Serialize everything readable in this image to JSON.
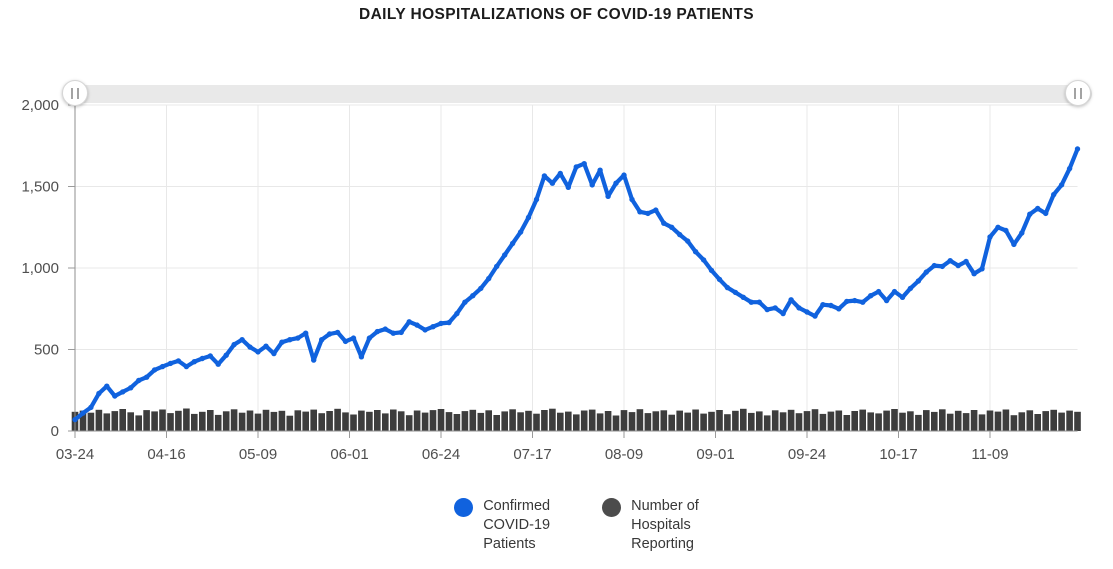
{
  "title": "DAILY HOSPITALIZATIONS OF COVID-19 PATIENTS",
  "range_slider": {
    "left_handle": "range-start",
    "right_handle": "range-end",
    "full_range_selected": true
  },
  "chart_data": {
    "type": "line+bar",
    "title": "DAILY HOSPITALIZATIONS OF COVID-19 PATIENTS",
    "xlabel": "",
    "ylabel": "",
    "ylim": [
      0,
      2000
    ],
    "grid": true,
    "legend_position": "bottom",
    "x_start_label": "03-24",
    "x_day_step": 2,
    "x_max_day": 252,
    "x_tick_days": [
      0,
      23,
      46,
      69,
      92,
      115,
      138,
      161,
      184,
      207,
      230
    ],
    "x_tick_labels": [
      "03-24",
      "04-16",
      "05-09",
      "06-01",
      "06-24",
      "07-17",
      "08-09",
      "09-01",
      "09-24",
      "10-17",
      "11-09"
    ],
    "y_ticks": [
      0,
      500,
      1000,
      1500,
      2000
    ],
    "y_tick_labels": [
      "0",
      "500",
      "1,000",
      "1,500",
      "2,000"
    ],
    "series": [
      {
        "name": "Confirmed COVID-19 Patients",
        "type": "line",
        "color": "#1062de",
        "values": [
          70,
          110,
          145,
          230,
          275,
          215,
          240,
          265,
          310,
          330,
          375,
          395,
          415,
          430,
          395,
          425,
          445,
          460,
          410,
          465,
          530,
          560,
          515,
          485,
          520,
          475,
          545,
          560,
          570,
          600,
          435,
          560,
          595,
          605,
          550,
          570,
          455,
          570,
          610,
          625,
          600,
          605,
          670,
          650,
          620,
          640,
          660,
          665,
          720,
          790,
          830,
          875,
          935,
          1010,
          1080,
          1150,
          1220,
          1310,
          1420,
          1565,
          1520,
          1580,
          1495,
          1620,
          1640,
          1510,
          1600,
          1440,
          1520,
          1570,
          1420,
          1345,
          1335,
          1355,
          1275,
          1250,
          1205,
          1165,
          1100,
          1050,
          985,
          930,
          880,
          850,
          820,
          790,
          790,
          745,
          755,
          720,
          805,
          755,
          730,
          705,
          775,
          770,
          750,
          795,
          800,
          790,
          830,
          855,
          800,
          855,
          820,
          875,
          920,
          975,
          1015,
          1010,
          1045,
          1015,
          1040,
          965,
          995,
          1190,
          1250,
          1230,
          1145,
          1215,
          1330,
          1365,
          1335,
          1450,
          1510,
          1610,
          1730
        ]
      },
      {
        "name": "Number of Hospitals Reporting",
        "type": "bar",
        "color": "#3d3d3d",
        "values": [
          118,
          125,
          112,
          130,
          108,
          122,
          135,
          115,
          96,
          128,
          120,
          132,
          110,
          124,
          138,
          105,
          118,
          129,
          99,
          121,
          133,
          112,
          126,
          107,
          130,
          117,
          124,
          94,
          127,
          119,
          131,
          109,
          123,
          136,
          114,
          101,
          125,
          118,
          129,
          108,
          132,
          121,
          97,
          126,
          113,
          128,
          135,
          116,
          104,
          122,
          130,
          111,
          127,
          98,
          120,
          133,
          115,
          124,
          106,
          129,
          137,
          112,
          119,
          102,
          126,
          131,
          108,
          123,
          95,
          128,
          116,
          134,
          110,
          121,
          127,
          100,
          125,
          113,
          132,
          107,
          118,
          129,
          103,
          124,
          136,
          111,
          120,
          96,
          127,
          115,
          130,
          109,
          122,
          134,
          105,
          119,
          126,
          98,
          123,
          131,
          114,
          108,
          125,
          135,
          112,
          121,
          99,
          128,
          117,
          133,
          106,
          124,
          110,
          129,
          102,
          126,
          119,
          132,
          97,
          115,
          127,
          104,
          122,
          130,
          113,
          125,
          118
        ]
      }
    ],
    "legend": [
      {
        "label": "Confirmed\nCOVID-19\nPatients",
        "color": "#1062de"
      },
      {
        "label": "Number of\nHospitals\nReporting",
        "color": "#4c4c4c"
      }
    ]
  }
}
